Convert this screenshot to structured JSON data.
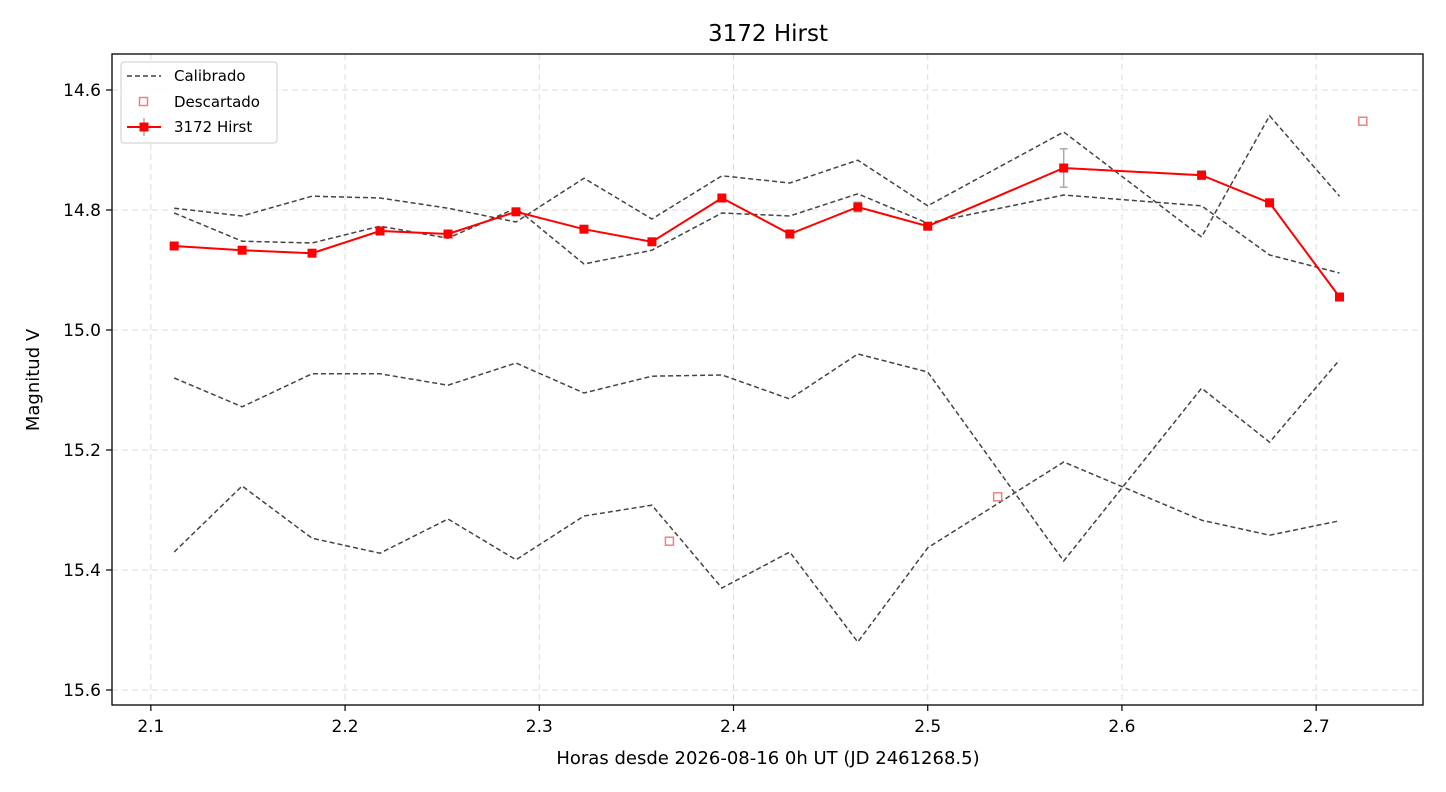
{
  "chart_data": {
    "type": "line",
    "title": "3172 Hirst",
    "xlabel": "Horas desde 2026-08-16 0h UT (JD 2461268.5)",
    "ylabel": "Magnitud V",
    "xlim": [
      2.08,
      2.755
    ],
    "ylim": [
      15.625,
      14.54
    ],
    "y_inverted": true,
    "grid": true,
    "legend_position": "top-left",
    "x_ticks": [
      2.1,
      2.2,
      2.3,
      2.4,
      2.5,
      2.6,
      2.7
    ],
    "x_tick_labels": [
      "2.1",
      "2.2",
      "2.3",
      "2.4",
      "2.5",
      "2.6",
      "2.7"
    ],
    "y_ticks": [
      14.6,
      14.8,
      15.0,
      15.2,
      15.4,
      15.6
    ],
    "y_tick_labels": [
      "14.6",
      "14.8",
      "15.0",
      "15.2",
      "15.4",
      "15.6"
    ],
    "legend": [
      {
        "label": "Calibrado",
        "style": "dashed",
        "color": "#444444"
      },
      {
        "label": "Descartado",
        "style": "open-square",
        "color": "#f08080"
      },
      {
        "label": "3172 Hirst",
        "style": "line-square",
        "color": "#ff0000"
      }
    ],
    "calibrated_series": [
      {
        "x": [
          2.112,
          2.147,
          2.183,
          2.218,
          2.253,
          2.288,
          2.323,
          2.358,
          2.394,
          2.429,
          2.464,
          2.5,
          2.57,
          2.641,
          2.676,
          2.712
        ],
        "y": [
          14.797,
          14.81,
          14.777,
          14.78,
          14.797,
          14.82,
          14.747,
          14.815,
          14.743,
          14.755,
          14.717,
          14.793,
          14.67,
          14.845,
          14.643,
          14.777
        ]
      },
      {
        "x": [
          2.112,
          2.147,
          2.183,
          2.218,
          2.253,
          2.288,
          2.323,
          2.358,
          2.394,
          2.429,
          2.464,
          2.5,
          2.57,
          2.641,
          2.676,
          2.712
        ],
        "y": [
          14.805,
          14.852,
          14.855,
          14.827,
          14.847,
          14.797,
          14.89,
          14.867,
          14.805,
          14.81,
          14.773,
          14.822,
          14.775,
          14.793,
          14.875,
          14.905
        ]
      },
      {
        "x": [
          2.112,
          2.147,
          2.183,
          2.218,
          2.253,
          2.288,
          2.323,
          2.358,
          2.394,
          2.429,
          2.464,
          2.5,
          2.57,
          2.641,
          2.676,
          2.712
        ],
        "y": [
          15.08,
          15.128,
          15.073,
          15.073,
          15.092,
          15.055,
          15.105,
          15.077,
          15.075,
          15.115,
          15.04,
          15.07,
          15.385,
          15.097,
          15.187,
          15.05
        ]
      },
      {
        "x": [
          2.112,
          2.147,
          2.183,
          2.218,
          2.253,
          2.288,
          2.323,
          2.358,
          2.394,
          2.429,
          2.464,
          2.5,
          2.57,
          2.641,
          2.676,
          2.712
        ],
        "y": [
          15.37,
          15.26,
          15.347,
          15.372,
          15.315,
          15.383,
          15.31,
          15.292,
          15.43,
          15.37,
          15.52,
          15.363,
          15.22,
          15.317,
          15.342,
          15.318
        ]
      }
    ],
    "target_series": {
      "name": "3172 Hirst",
      "color": "#ff0000",
      "x": [
        2.112,
        2.147,
        2.183,
        2.218,
        2.253,
        2.288,
        2.323,
        2.358,
        2.394,
        2.429,
        2.464,
        2.5,
        2.57,
        2.641,
        2.676,
        2.712
      ],
      "y": [
        14.86,
        14.867,
        14.872,
        14.835,
        14.84,
        14.803,
        14.832,
        14.853,
        14.78,
        14.84,
        14.795,
        14.827,
        14.73,
        14.742,
        14.788,
        14.945
      ],
      "yerr": [
        0.004,
        0.004,
        0.004,
        0.004,
        0.004,
        0.004,
        0.004,
        0.004,
        0.005,
        0.004,
        0.008,
        0.004,
        0.032,
        0.007,
        0.004,
        0.004
      ]
    },
    "discarded_points": {
      "color": "#f08080",
      "x": [
        2.367,
        2.536,
        2.724
      ],
      "y": [
        15.352,
        15.278,
        14.652
      ]
    }
  }
}
